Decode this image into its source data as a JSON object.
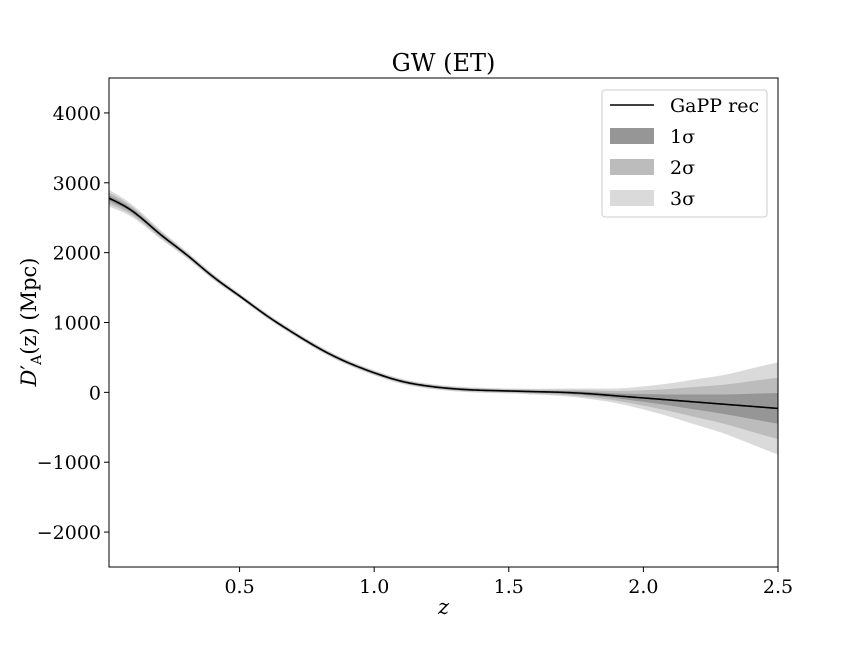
{
  "chart_data": {
    "type": "line",
    "title": "GW (ET)",
    "xlabel": "z",
    "ylabel": "D′_A(z) (Mpc)",
    "ylabel_main": "D",
    "ylabel_prime": "′",
    "ylabel_sub": "A",
    "ylabel_rest": "(z) (Mpc)",
    "xlim": [
      0.015,
      2.5
    ],
    "ylim": [
      -2500,
      4500
    ],
    "xticks": [
      0.5,
      1.0,
      1.5,
      2.0,
      2.5
    ],
    "xtick_labels": [
      "0.5",
      "1.0",
      "1.5",
      "2.0",
      "2.5"
    ],
    "yticks": [
      -2000,
      -1000,
      0,
      1000,
      2000,
      3000,
      4000
    ],
    "ytick_labels": [
      "−2000",
      "−1000",
      "0",
      "1000",
      "2000",
      "3000",
      "4000"
    ],
    "grid": false,
    "legend_position": "top-right",
    "legend": [
      {
        "label": "GaPP rec",
        "kind": "line",
        "color": "#000000"
      },
      {
        "label": "1σ",
        "kind": "band",
        "color": "#969696"
      },
      {
        "label": "2σ",
        "kind": "band",
        "color": "#bcbcbc"
      },
      {
        "label": "3σ",
        "kind": "band",
        "color": "#dadada"
      }
    ],
    "series": [
      {
        "name": "GaPP rec",
        "x": [
          0.015,
          0.1,
          0.2,
          0.3,
          0.4,
          0.5,
          0.6,
          0.7,
          0.8,
          0.9,
          1.0,
          1.1,
          1.2,
          1.3,
          1.4,
          1.5,
          1.6,
          1.7,
          1.8,
          1.9,
          2.0,
          2.1,
          2.2,
          2.3,
          2.4,
          2.5
        ],
        "y": [
          2780,
          2600,
          2280,
          1980,
          1660,
          1380,
          1100,
          850,
          620,
          430,
          280,
          160,
          90,
          50,
          30,
          20,
          10,
          0,
          -20,
          -50,
          -80,
          -110,
          -140,
          -170,
          -200,
          -230
        ],
        "sigma": [
          40,
          30,
          22,
          16,
          14,
          12,
          12,
          12,
          12,
          12,
          12,
          12,
          12,
          12,
          12,
          12,
          14,
          18,
          25,
          35,
          55,
          80,
          110,
          140,
          180,
          220
        ]
      }
    ]
  }
}
